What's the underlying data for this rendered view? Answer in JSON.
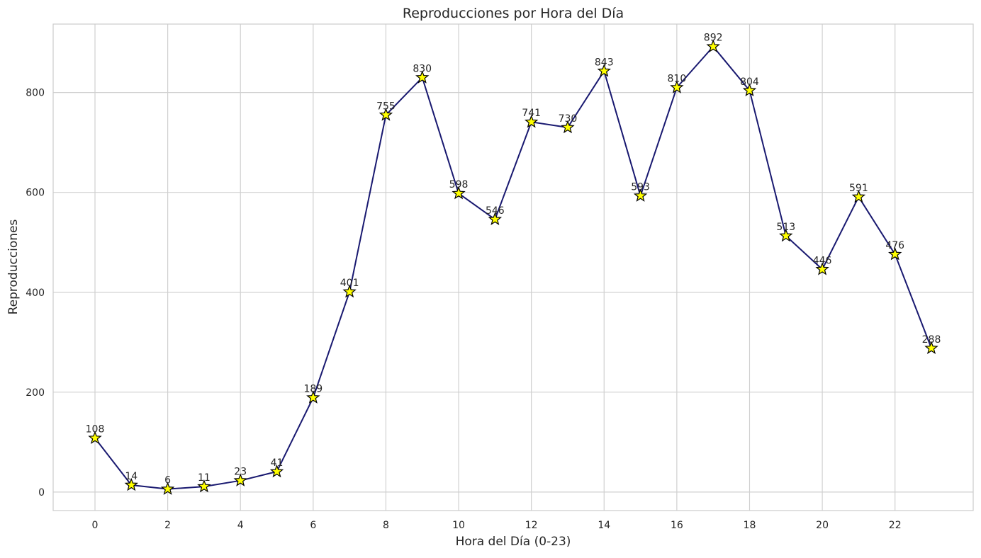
{
  "chart_data": {
    "type": "line",
    "title": "Reproducciones por Hora del Día",
    "xlabel": "Hora del Día (0-23)",
    "ylabel": "Reproducciones",
    "x": [
      0,
      1,
      2,
      3,
      4,
      5,
      6,
      7,
      8,
      9,
      10,
      11,
      12,
      13,
      14,
      15,
      16,
      17,
      18,
      19,
      20,
      21,
      22,
      23
    ],
    "values": [
      108,
      14,
      6,
      11,
      23,
      41,
      189,
      401,
      755,
      830,
      598,
      546,
      741,
      730,
      843,
      593,
      810,
      892,
      804,
      513,
      446,
      591,
      476,
      288
    ],
    "xticks": [
      0,
      2,
      4,
      6,
      8,
      10,
      12,
      14,
      16,
      18,
      20,
      22
    ],
    "yticks": [
      0,
      200,
      400,
      600,
      800
    ],
    "xlim": [
      -1.15,
      24.15
    ],
    "ylim": [
      -37,
      937
    ],
    "grid": true,
    "legend": "none",
    "line_color": "#191970",
    "marker": "star",
    "marker_color": "#ffff00",
    "marker_edge_color": "#000000"
  }
}
